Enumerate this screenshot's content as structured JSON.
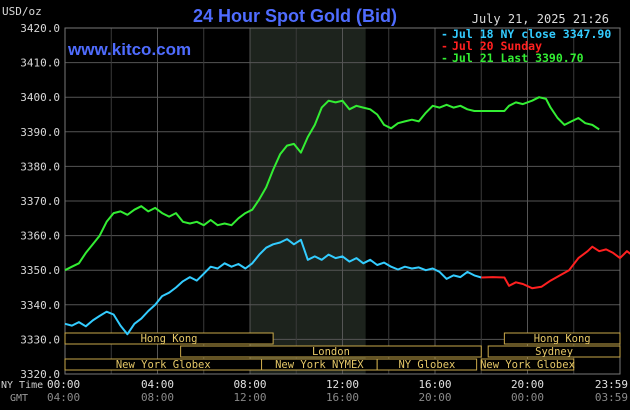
{
  "chart_data": {
    "type": "line",
    "title": "24 Hour Spot Gold (Bid)",
    "site": "www.kitco.com",
    "timestamp": "July 21, 2025 21:26",
    "y_unit": "USD/oz",
    "ylim": [
      3320.0,
      3420.0
    ],
    "y_ticks": [
      "3420.0",
      "3410.0",
      "3400.0",
      "3390.0",
      "3380.0",
      "3370.0",
      "3360.0",
      "3350.0",
      "3340.0",
      "3330.0",
      "3320.0"
    ],
    "x_axis_label_ny": "NY Time",
    "x_axis_label_gmt": "GMT",
    "x_ticks_ny": [
      "00:00",
      "04:00",
      "08:00",
      "12:00",
      "16:00",
      "20:00",
      "23:59"
    ],
    "x_ticks_gmt": [
      "04:00",
      "08:00",
      "12:00",
      "16:00",
      "20:00",
      "00:00",
      "03:59"
    ],
    "xlim_hours": [
      0,
      24
    ],
    "grid": true,
    "legend_position": "top-right",
    "legend": [
      {
        "marker": "-",
        "text": "Jul 18 NY close 3347.90",
        "color": "#33ccff"
      },
      {
        "marker": "-",
        "text": "Jul 20 Sunday",
        "color": "#ff2020"
      },
      {
        "marker": "-",
        "text": "Jul 21 Last 3390.70",
        "color": "#33ee33"
      }
    ],
    "shaded_session_hours": [
      8.0,
      13.0
    ],
    "series": [
      {
        "name": "Jul 18",
        "color": "#33ccff",
        "points": [
          [
            0.0,
            3334.5
          ],
          [
            0.3,
            3334.0
          ],
          [
            0.6,
            3335.0
          ],
          [
            0.9,
            3333.8
          ],
          [
            1.2,
            3335.5
          ],
          [
            1.5,
            3336.8
          ],
          [
            1.8,
            3338.0
          ],
          [
            2.1,
            3337.2
          ],
          [
            2.4,
            3334.0
          ],
          [
            2.7,
            3331.5
          ],
          [
            3.0,
            3334.5
          ],
          [
            3.3,
            3336.0
          ],
          [
            3.6,
            3338.2
          ],
          [
            3.9,
            3340.0
          ],
          [
            4.2,
            3342.5
          ],
          [
            4.5,
            3343.5
          ],
          [
            4.8,
            3345.0
          ],
          [
            5.1,
            3346.8
          ],
          [
            5.4,
            3348.0
          ],
          [
            5.7,
            3347.0
          ],
          [
            6.0,
            3349.0
          ],
          [
            6.3,
            3351.0
          ],
          [
            6.6,
            3350.5
          ],
          [
            6.9,
            3352.0
          ],
          [
            7.2,
            3351.0
          ],
          [
            7.5,
            3351.8
          ],
          [
            7.8,
            3350.5
          ],
          [
            8.1,
            3352.0
          ],
          [
            8.4,
            3354.5
          ],
          [
            8.7,
            3356.5
          ],
          [
            9.0,
            3357.5
          ],
          [
            9.3,
            3358.0
          ],
          [
            9.6,
            3359.0
          ],
          [
            9.9,
            3357.5
          ],
          [
            10.2,
            3358.8
          ],
          [
            10.5,
            3353.0
          ],
          [
            10.8,
            3354.0
          ],
          [
            11.1,
            3353.0
          ],
          [
            11.4,
            3354.5
          ],
          [
            11.7,
            3353.5
          ],
          [
            12.0,
            3354.0
          ],
          [
            12.3,
            3352.5
          ],
          [
            12.6,
            3353.5
          ],
          [
            12.9,
            3352.0
          ],
          [
            13.2,
            3353.0
          ],
          [
            13.5,
            3351.5
          ],
          [
            13.8,
            3352.2
          ],
          [
            14.1,
            3351.0
          ],
          [
            14.4,
            3350.2
          ],
          [
            14.7,
            3351.0
          ],
          [
            15.0,
            3350.5
          ],
          [
            15.3,
            3350.8
          ],
          [
            15.6,
            3350.0
          ],
          [
            15.9,
            3350.5
          ],
          [
            16.2,
            3349.5
          ],
          [
            16.5,
            3347.5
          ],
          [
            16.8,
            3348.5
          ],
          [
            17.1,
            3348.0
          ],
          [
            17.4,
            3349.5
          ],
          [
            17.7,
            3348.5
          ],
          [
            18.0,
            3347.9
          ]
        ]
      },
      {
        "name": "Jul 20",
        "color": "#ff2020",
        "points": [
          [
            18.0,
            3347.9
          ],
          [
            18.5,
            3348.0
          ],
          [
            19.0,
            3347.9
          ],
          [
            19.2,
            3345.5
          ],
          [
            19.5,
            3346.5
          ],
          [
            19.8,
            3346.0
          ],
          [
            20.2,
            3344.8
          ],
          [
            20.6,
            3345.2
          ],
          [
            21.0,
            3347.0
          ],
          [
            21.4,
            3348.5
          ],
          [
            21.8,
            3350.0
          ],
          [
            22.2,
            3353.5
          ],
          [
            22.6,
            3355.5
          ],
          [
            22.8,
            3356.8
          ],
          [
            23.1,
            3355.5
          ],
          [
            23.4,
            3356.0
          ],
          [
            23.7,
            3355.0
          ],
          [
            24.0,
            3353.5
          ],
          [
            24.3,
            3355.5
          ],
          [
            24.6,
            3354.0
          ],
          [
            24.9,
            3353.5
          ],
          [
            25.2,
            3354.5
          ],
          [
            25.5,
            3352.5
          ],
          [
            25.8,
            3352.0
          ],
          [
            26.1,
            3350.5
          ],
          [
            26.4,
            3350.6
          ]
        ]
      },
      {
        "name": "Jul 21",
        "color": "#33ee33",
        "points": [
          [
            0.0,
            3350.0
          ],
          [
            0.3,
            3351.0
          ],
          [
            0.6,
            3352.0
          ],
          [
            0.9,
            3355.0
          ],
          [
            1.2,
            3357.5
          ],
          [
            1.5,
            3360.0
          ],
          [
            1.8,
            3364.0
          ],
          [
            2.1,
            3366.5
          ],
          [
            2.4,
            3367.0
          ],
          [
            2.7,
            3366.0
          ],
          [
            3.0,
            3367.5
          ],
          [
            3.3,
            3368.5
          ],
          [
            3.6,
            3367.0
          ],
          [
            3.9,
            3368.0
          ],
          [
            4.2,
            3366.5
          ],
          [
            4.5,
            3365.5
          ],
          [
            4.8,
            3366.5
          ],
          [
            5.1,
            3364.0
          ],
          [
            5.4,
            3363.5
          ],
          [
            5.7,
            3364.0
          ],
          [
            6.0,
            3363.0
          ],
          [
            6.3,
            3364.5
          ],
          [
            6.6,
            3363.0
          ],
          [
            6.9,
            3363.5
          ],
          [
            7.2,
            3363.0
          ],
          [
            7.5,
            3365.0
          ],
          [
            7.8,
            3366.5
          ],
          [
            8.1,
            3367.5
          ],
          [
            8.4,
            3370.5
          ],
          [
            8.7,
            3374.0
          ],
          [
            9.0,
            3379.0
          ],
          [
            9.3,
            3383.5
          ],
          [
            9.6,
            3386.0
          ],
          [
            9.9,
            3386.5
          ],
          [
            10.2,
            3384.0
          ],
          [
            10.5,
            3388.5
          ],
          [
            10.8,
            3392.0
          ],
          [
            11.1,
            3397.0
          ],
          [
            11.4,
            3399.0
          ],
          [
            11.7,
            3398.5
          ],
          [
            12.0,
            3399.0
          ],
          [
            12.3,
            3396.5
          ],
          [
            12.6,
            3397.5
          ],
          [
            12.9,
            3397.0
          ],
          [
            13.2,
            3396.5
          ],
          [
            13.5,
            3395.0
          ],
          [
            13.8,
            3392.0
          ],
          [
            14.1,
            3391.0
          ],
          [
            14.4,
            3392.5
          ],
          [
            14.7,
            3393.0
          ],
          [
            15.0,
            3393.5
          ],
          [
            15.3,
            3393.0
          ],
          [
            15.6,
            3395.5
          ],
          [
            15.9,
            3397.5
          ],
          [
            16.2,
            3397.0
          ],
          [
            16.5,
            3397.8
          ],
          [
            16.8,
            3397.0
          ],
          [
            17.1,
            3397.5
          ],
          [
            17.4,
            3396.5
          ],
          [
            17.7,
            3396.0
          ],
          [
            18.0,
            3396.0
          ],
          [
            18.5,
            3396.0
          ],
          [
            19.0,
            3396.0
          ],
          [
            19.2,
            3397.5
          ],
          [
            19.5,
            3398.5
          ],
          [
            19.8,
            3398.0
          ],
          [
            20.2,
            3399.0
          ],
          [
            20.5,
            3400.0
          ],
          [
            20.8,
            3399.5
          ],
          [
            21.0,
            3397.0
          ],
          [
            21.3,
            3394.0
          ],
          [
            21.6,
            3392.0
          ],
          [
            21.9,
            3393.0
          ],
          [
            22.2,
            3394.0
          ],
          [
            22.5,
            3392.5
          ],
          [
            22.8,
            3392.0
          ],
          [
            23.1,
            3390.7
          ]
        ]
      }
    ],
    "sessions": [
      {
        "label": "Hong Kong",
        "start": 0.0,
        "end": 9.0,
        "row": 1
      },
      {
        "label": "London",
        "start": 5.0,
        "end": 18.0,
        "row": 2
      },
      {
        "label": "New York Globex",
        "start": 0.0,
        "end": 8.5,
        "row": 3
      },
      {
        "label": "New York NYMEX",
        "start": 8.5,
        "end": 13.5,
        "row": 3
      },
      {
        "label": "NY Globex",
        "start": 13.5,
        "end": 17.8,
        "row": 3
      },
      {
        "label": "Hong Kong",
        "start": 19.0,
        "end": 24.0,
        "row": 1
      },
      {
        "label": "Sydney",
        "start": 18.3,
        "end": 24.0,
        "row": 2
      },
      {
        "label": "New York Globex",
        "start": 18.0,
        "end": 22.0,
        "row": 3
      }
    ]
  }
}
